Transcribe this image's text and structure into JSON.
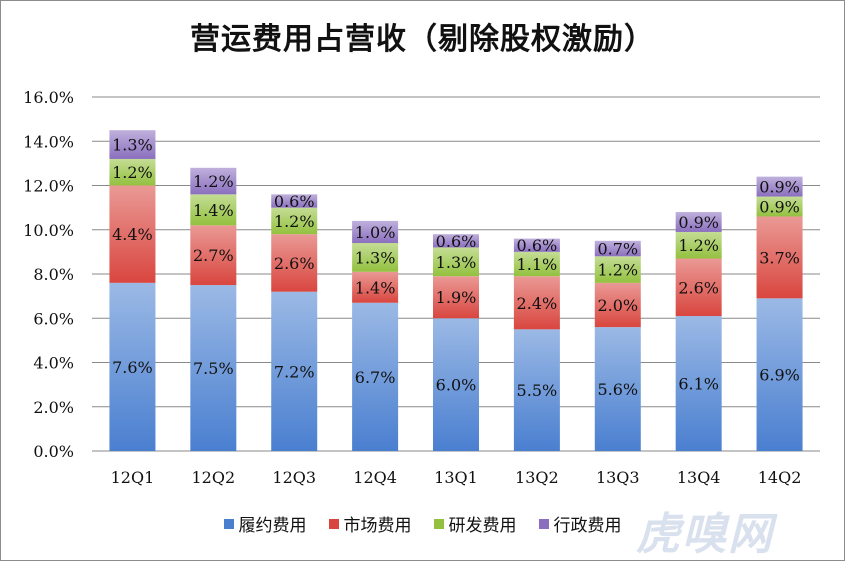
{
  "chart_data": {
    "type": "bar",
    "stacked": true,
    "title": "营运费用占营收（剔除股权激励）",
    "categories": [
      "12Q1",
      "12Q2",
      "12Q3",
      "12Q4",
      "13Q1",
      "13Q2",
      "13Q3",
      "13Q4",
      "14Q2"
    ],
    "series": [
      {
        "name": "履约费用",
        "color": "#4a7fd0",
        "values": [
          7.6,
          7.5,
          7.2,
          6.7,
          6.0,
          5.5,
          5.6,
          6.1,
          6.9
        ]
      },
      {
        "name": "市场费用",
        "color": "#d9463f",
        "values": [
          4.4,
          2.7,
          2.6,
          1.4,
          1.9,
          2.4,
          2.0,
          2.6,
          3.7
        ]
      },
      {
        "name": "研发费用",
        "color": "#93c13f",
        "values": [
          1.2,
          1.4,
          1.2,
          1.3,
          1.3,
          1.1,
          1.2,
          1.2,
          0.9
        ]
      },
      {
        "name": "行政费用",
        "color": "#8b6fbf",
        "values": [
          1.3,
          1.2,
          0.6,
          1.0,
          0.6,
          0.6,
          0.7,
          0.9,
          0.9
        ]
      }
    ],
    "ylim": [
      0,
      16
    ],
    "ytick_step": 2,
    "ytick_format": "percent_1dp",
    "grid": true,
    "legend_position": "bottom"
  },
  "watermark": "虎嗅网"
}
